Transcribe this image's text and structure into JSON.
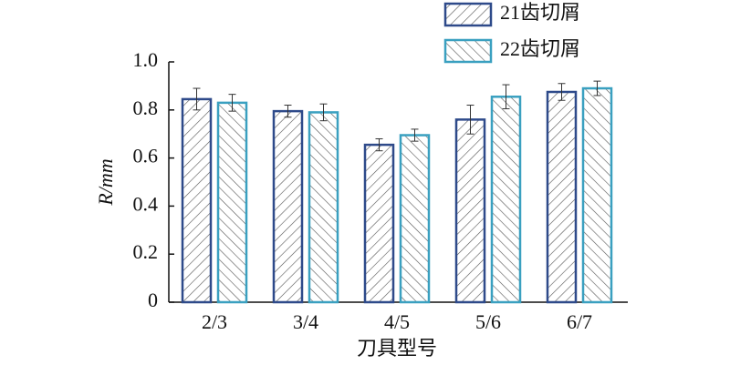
{
  "chart_data": {
    "type": "bar",
    "y_label": "R/mm",
    "x_label": "刀具型号",
    "categories": [
      "2/3",
      "3/4",
      "4/5",
      "5/6",
      "6/7"
    ],
    "series": [
      {
        "name": "21齿切屑",
        "color": "#2e4a8a",
        "hatch": "forward",
        "values": [
          0.845,
          0.795,
          0.655,
          0.76,
          0.875
        ],
        "errors": [
          0.045,
          0.025,
          0.025,
          0.06,
          0.035
        ]
      },
      {
        "name": "22齿切屑",
        "color": "#3aa0c0",
        "hatch": "backward",
        "values": [
          0.83,
          0.79,
          0.695,
          0.855,
          0.89
        ],
        "errors": [
          0.035,
          0.035,
          0.025,
          0.05,
          0.03
        ]
      }
    ],
    "ylim": [
      0,
      1
    ],
    "yticks": [
      0,
      0.2,
      0.4,
      0.6,
      0.8,
      {
        "value": 1,
        "label": "1.0"
      }
    ],
    "grid": false,
    "legend": "top-right"
  }
}
